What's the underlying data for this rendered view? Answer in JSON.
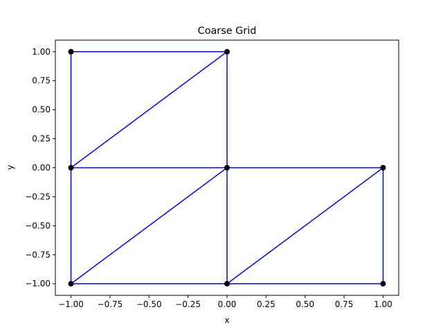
{
  "chart_data": {
    "type": "scatter",
    "title": "Coarse Grid",
    "xlabel": "x",
    "ylabel": "y",
    "xlim": [
      -1.1,
      1.1
    ],
    "ylim": [
      -1.1,
      1.1
    ],
    "grid": false,
    "x_ticks": [
      -1.0,
      -0.75,
      -0.5,
      -0.25,
      0.0,
      0.25,
      0.5,
      0.75,
      1.0
    ],
    "x_tick_labels": [
      "−1.00",
      "−0.75",
      "−0.50",
      "−0.25",
      "0.00",
      "0.25",
      "0.50",
      "0.75",
      "1.00"
    ],
    "y_ticks": [
      -1.0,
      -0.75,
      -0.5,
      -0.25,
      0.0,
      0.25,
      0.5,
      0.75,
      1.0
    ],
    "y_tick_labels": [
      "−1.00",
      "−0.75",
      "−0.50",
      "−0.25",
      "0.00",
      "0.25",
      "0.50",
      "0.75",
      "1.00"
    ],
    "nodes": [
      {
        "x": -1.0,
        "y": 1.0
      },
      {
        "x": 0.0,
        "y": 1.0
      },
      {
        "x": -1.0,
        "y": 0.0
      },
      {
        "x": 0.0,
        "y": 0.0
      },
      {
        "x": 1.0,
        "y": 0.0
      },
      {
        "x": -1.0,
        "y": -1.0
      },
      {
        "x": 0.0,
        "y": -1.0
      },
      {
        "x": 1.0,
        "y": -1.0
      }
    ],
    "edges": [
      [
        -1.0,
        1.0,
        0.0,
        1.0
      ],
      [
        -1.0,
        1.0,
        -1.0,
        0.0
      ],
      [
        0.0,
        1.0,
        0.0,
        0.0
      ],
      [
        -1.0,
        0.0,
        0.0,
        1.0
      ],
      [
        -1.0,
        0.0,
        0.0,
        0.0
      ],
      [
        0.0,
        0.0,
        1.0,
        0.0
      ],
      [
        -1.0,
        0.0,
        -1.0,
        -1.0
      ],
      [
        0.0,
        0.0,
        0.0,
        -1.0
      ],
      [
        1.0,
        0.0,
        1.0,
        -1.0
      ],
      [
        -1.0,
        -1.0,
        0.0,
        0.0
      ],
      [
        0.0,
        -1.0,
        1.0,
        0.0
      ],
      [
        -1.0,
        -1.0,
        0.0,
        -1.0
      ],
      [
        0.0,
        -1.0,
        1.0,
        -1.0
      ]
    ],
    "edge_color": "#0000ff",
    "node_color": "#000000"
  }
}
